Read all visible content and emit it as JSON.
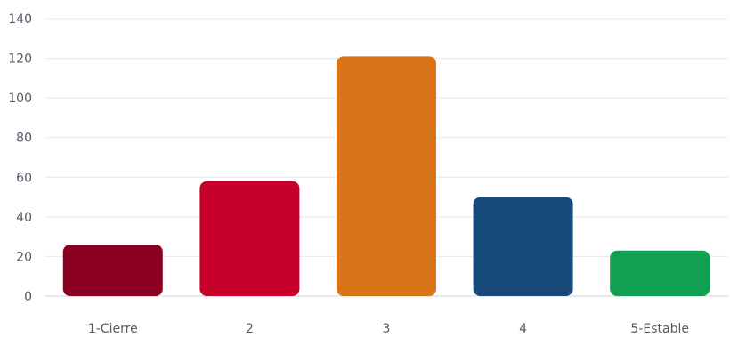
{
  "chart_data": {
    "type": "bar",
    "title": "",
    "xlabel": "",
    "ylabel": "",
    "categories": [
      "1-Cierre",
      "2",
      "3",
      "4",
      "5-Estable"
    ],
    "values": [
      26,
      58,
      121,
      50,
      23
    ],
    "colors": [
      "#8b0020",
      "#c8002c",
      "#d97518",
      "#17497a",
      "#10a052"
    ],
    "ylim": [
      0,
      140
    ],
    "yticks": [
      0,
      20,
      40,
      60,
      80,
      100,
      120,
      140
    ],
    "grid": true,
    "legend": "none"
  }
}
